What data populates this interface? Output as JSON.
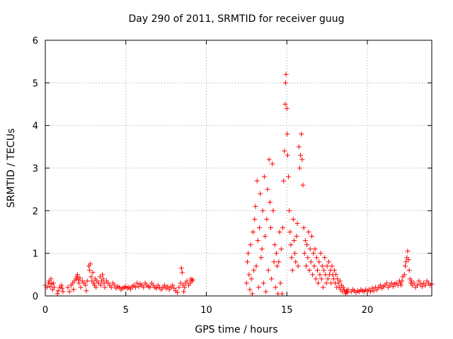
{
  "chart_data": {
    "type": "scatter",
    "title": "Day 290 of 2011, SRMTID for receiver guug",
    "xlabel": "GPS time / hours",
    "ylabel": "SRMTID / TECUs",
    "xlim": [
      0,
      24
    ],
    "ylim": [
      0,
      6
    ],
    "xticks": [
      0,
      5,
      10,
      15,
      20
    ],
    "yticks": [
      0,
      1,
      2,
      3,
      4,
      5,
      6
    ],
    "grid": true,
    "marker": "+",
    "marker_color": "#ff0000",
    "series": [
      {
        "name": "SRMTID",
        "color": "#ff0000",
        "points": [
          [
            0.0,
            0.25
          ],
          [
            0.1,
            0.2
          ],
          [
            0.2,
            0.3
          ],
          [
            0.25,
            0.35
          ],
          [
            0.3,
            0.22
          ],
          [
            0.35,
            0.4
          ],
          [
            0.4,
            0.28
          ],
          [
            0.45,
            0.15
          ],
          [
            0.5,
            0.3
          ],
          [
            0.55,
            0.2
          ],
          [
            0.75,
            0.05
          ],
          [
            0.8,
            0.12
          ],
          [
            0.9,
            0.2
          ],
          [
            1.0,
            0.25
          ],
          [
            1.05,
            0.18
          ],
          [
            1.1,
            0.1
          ],
          [
            1.4,
            0.2
          ],
          [
            1.5,
            0.1
          ],
          [
            1.6,
            0.25
          ],
          [
            1.7,
            0.3
          ],
          [
            1.75,
            0.15
          ],
          [
            1.8,
            0.35
          ],
          [
            1.9,
            0.4
          ],
          [
            1.95,
            0.45
          ],
          [
            2.0,
            0.5
          ],
          [
            2.05,
            0.38
          ],
          [
            2.1,
            0.3
          ],
          [
            2.15,
            0.42
          ],
          [
            2.2,
            0.2
          ],
          [
            2.3,
            0.35
          ],
          [
            2.4,
            0.3
          ],
          [
            2.5,
            0.25
          ],
          [
            2.55,
            0.12
          ],
          [
            2.6,
            0.35
          ],
          [
            2.7,
            0.7
          ],
          [
            2.75,
            0.6
          ],
          [
            2.8,
            0.75
          ],
          [
            2.85,
            0.45
          ],
          [
            2.9,
            0.35
          ],
          [
            2.95,
            0.55
          ],
          [
            3.0,
            0.3
          ],
          [
            3.05,
            0.25
          ],
          [
            3.1,
            0.4
          ],
          [
            3.15,
            0.2
          ],
          [
            3.2,
            0.35
          ],
          [
            3.3,
            0.3
          ],
          [
            3.4,
            0.45
          ],
          [
            3.45,
            0.25
          ],
          [
            3.5,
            0.35
          ],
          [
            3.55,
            0.5
          ],
          [
            3.6,
            0.4
          ],
          [
            3.65,
            0.3
          ],
          [
            3.7,
            0.2
          ],
          [
            3.8,
            0.35
          ],
          [
            3.9,
            0.3
          ],
          [
            4.0,
            0.25
          ],
          [
            4.1,
            0.2
          ],
          [
            4.2,
            0.3
          ],
          [
            4.3,
            0.25
          ],
          [
            4.4,
            0.18
          ],
          [
            4.5,
            0.22
          ],
          [
            4.6,
            0.2
          ],
          [
            4.7,
            0.15
          ],
          [
            4.8,
            0.18
          ],
          [
            4.9,
            0.2
          ],
          [
            5.0,
            0.22
          ],
          [
            5.1,
            0.18
          ],
          [
            5.2,
            0.2
          ],
          [
            5.3,
            0.16
          ],
          [
            5.4,
            0.22
          ],
          [
            5.5,
            0.25
          ],
          [
            5.6,
            0.2
          ],
          [
            5.7,
            0.3
          ],
          [
            5.8,
            0.22
          ],
          [
            5.9,
            0.28
          ],
          [
            6.0,
            0.25
          ],
          [
            6.1,
            0.2
          ],
          [
            6.2,
            0.3
          ],
          [
            6.3,
            0.25
          ],
          [
            6.4,
            0.22
          ],
          [
            6.5,
            0.2
          ],
          [
            6.6,
            0.3
          ],
          [
            6.7,
            0.25
          ],
          [
            6.8,
            0.2
          ],
          [
            6.9,
            0.18
          ],
          [
            7.0,
            0.25
          ],
          [
            7.1,
            0.2
          ],
          [
            7.2,
            0.15
          ],
          [
            7.3,
            0.2
          ],
          [
            7.4,
            0.25
          ],
          [
            7.5,
            0.18
          ],
          [
            7.6,
            0.22
          ],
          [
            7.7,
            0.15
          ],
          [
            7.8,
            0.2
          ],
          [
            7.9,
            0.25
          ],
          [
            8.0,
            0.18
          ],
          [
            8.1,
            0.12
          ],
          [
            8.2,
            0.08
          ],
          [
            8.3,
            0.2
          ],
          [
            8.4,
            0.3
          ],
          [
            8.45,
            0.65
          ],
          [
            8.5,
            0.55
          ],
          [
            8.55,
            0.25
          ],
          [
            8.6,
            0.1
          ],
          [
            8.65,
            0.2
          ],
          [
            8.7,
            0.3
          ],
          [
            8.8,
            0.35
          ],
          [
            8.9,
            0.25
          ],
          [
            9.0,
            0.3
          ],
          [
            9.05,
            0.4
          ],
          [
            9.1,
            0.35
          ],
          [
            9.15,
            0.38
          ],
          [
            12.5,
            0.3
          ],
          [
            12.55,
            0.8
          ],
          [
            12.6,
            1.0
          ],
          [
            12.65,
            0.5
          ],
          [
            12.7,
            0.15
          ],
          [
            12.75,
            1.2
          ],
          [
            12.8,
            0.4
          ],
          [
            12.85,
            0.05
          ],
          [
            12.9,
            1.5
          ],
          [
            12.95,
            0.6
          ],
          [
            13.0,
            1.8
          ],
          [
            13.05,
            2.1
          ],
          [
            13.1,
            0.7
          ],
          [
            13.15,
            2.7
          ],
          [
            13.2,
            1.3
          ],
          [
            13.25,
            0.2
          ],
          [
            13.3,
            1.6
          ],
          [
            13.35,
            2.4
          ],
          [
            13.4,
            0.9
          ],
          [
            13.45,
            1.1
          ],
          [
            13.5,
            2.0
          ],
          [
            13.55,
            0.3
          ],
          [
            13.6,
            2.8
          ],
          [
            13.65,
            1.4
          ],
          [
            13.7,
            0.1
          ],
          [
            13.75,
            1.8
          ],
          [
            13.8,
            2.5
          ],
          [
            13.85,
            0.6
          ],
          [
            13.9,
            3.2
          ],
          [
            13.95,
            2.2
          ],
          [
            14.0,
            1.6
          ],
          [
            14.05,
            0.4
          ],
          [
            14.1,
            3.1
          ],
          [
            14.15,
            2.0
          ],
          [
            14.2,
            0.8
          ],
          [
            14.25,
            1.2
          ],
          [
            14.3,
            0.2
          ],
          [
            14.35,
            1.0
          ],
          [
            14.4,
            0.7
          ],
          [
            14.45,
            0.05
          ],
          [
            14.5,
            0.8
          ],
          [
            14.55,
            1.5
          ],
          [
            14.6,
            0.3
          ],
          [
            14.65,
            1.1
          ],
          [
            14.7,
            0.05
          ],
          [
            14.75,
            1.6
          ],
          [
            14.8,
            2.7
          ],
          [
            14.85,
            3.4
          ],
          [
            14.9,
            4.5
          ],
          [
            14.92,
            5.0
          ],
          [
            14.95,
            5.2
          ],
          [
            15.0,
            4.4
          ],
          [
            15.02,
            3.8
          ],
          [
            15.05,
            3.3
          ],
          [
            15.1,
            2.8
          ],
          [
            15.15,
            2.0
          ],
          [
            15.2,
            1.5
          ],
          [
            15.25,
            1.2
          ],
          [
            15.3,
            0.9
          ],
          [
            15.35,
            0.6
          ],
          [
            15.4,
            1.8
          ],
          [
            15.45,
            1.3
          ],
          [
            15.5,
            1.0
          ],
          [
            15.55,
            0.8
          ],
          [
            15.6,
            1.4
          ],
          [
            15.65,
            1.7
          ],
          [
            15.7,
            0.7
          ],
          [
            15.75,
            3.5
          ],
          [
            15.8,
            3.0
          ],
          [
            15.85,
            3.3
          ],
          [
            15.9,
            3.8
          ],
          [
            15.95,
            3.2
          ],
          [
            16.0,
            2.6
          ],
          [
            16.05,
            1.6
          ],
          [
            16.1,
            1.0
          ],
          [
            16.15,
            1.3
          ],
          [
            16.2,
            0.7
          ],
          [
            16.25,
            1.2
          ],
          [
            16.3,
            0.9
          ],
          [
            16.35,
            1.5
          ],
          [
            16.4,
            0.6
          ],
          [
            16.45,
            1.1
          ],
          [
            16.5,
            0.8
          ],
          [
            16.55,
            1.4
          ],
          [
            16.6,
            0.5
          ],
          [
            16.65,
            1.0
          ],
          [
            16.7,
            0.7
          ],
          [
            16.75,
            1.1
          ],
          [
            16.8,
            0.4
          ],
          [
            16.85,
            0.9
          ],
          [
            16.9,
            0.6
          ],
          [
            16.95,
            0.3
          ],
          [
            17.0,
            0.8
          ],
          [
            17.05,
            0.5
          ],
          [
            17.1,
            1.0
          ],
          [
            17.15,
            0.4
          ],
          [
            17.2,
            0.7
          ],
          [
            17.25,
            0.2
          ],
          [
            17.3,
            0.6
          ],
          [
            17.35,
            0.9
          ],
          [
            17.4,
            0.5
          ],
          [
            17.45,
            0.3
          ],
          [
            17.5,
            0.7
          ],
          [
            17.55,
            0.4
          ],
          [
            17.6,
            0.8
          ],
          [
            17.65,
            0.5
          ],
          [
            17.7,
            0.6
          ],
          [
            17.75,
            0.3
          ],
          [
            17.8,
            0.7
          ],
          [
            17.85,
            0.5
          ],
          [
            17.9,
            0.4
          ],
          [
            17.95,
            0.6
          ],
          [
            18.0,
            0.3
          ],
          [
            18.05,
            0.5
          ],
          [
            18.1,
            0.2
          ],
          [
            18.15,
            0.4
          ],
          [
            18.2,
            0.3
          ],
          [
            18.25,
            0.2
          ],
          [
            18.3,
            0.35
          ],
          [
            18.35,
            0.15
          ],
          [
            18.4,
            0.25
          ],
          [
            18.45,
            0.1
          ],
          [
            18.5,
            0.2
          ],
          [
            18.55,
            0.15
          ],
          [
            18.6,
            0.1
          ],
          [
            18.65,
            0.05
          ],
          [
            18.7,
            0.12
          ],
          [
            18.75,
            0.08
          ],
          [
            18.8,
            0.15
          ],
          [
            19.0,
            0.1
          ],
          [
            19.1,
            0.15
          ],
          [
            19.2,
            0.12
          ],
          [
            19.3,
            0.08
          ],
          [
            19.4,
            0.12
          ],
          [
            19.5,
            0.1
          ],
          [
            19.6,
            0.15
          ],
          [
            19.7,
            0.12
          ],
          [
            19.8,
            0.1
          ],
          [
            19.9,
            0.15
          ],
          [
            20.0,
            0.12
          ],
          [
            20.1,
            0.15
          ],
          [
            20.2,
            0.1
          ],
          [
            20.3,
            0.18
          ],
          [
            20.4,
            0.12
          ],
          [
            20.5,
            0.2
          ],
          [
            20.6,
            0.15
          ],
          [
            20.7,
            0.2
          ],
          [
            20.8,
            0.25
          ],
          [
            20.9,
            0.18
          ],
          [
            21.0,
            0.22
          ],
          [
            21.1,
            0.25
          ],
          [
            21.2,
            0.3
          ],
          [
            21.3,
            0.2
          ],
          [
            21.4,
            0.25
          ],
          [
            21.5,
            0.3
          ],
          [
            21.6,
            0.22
          ],
          [
            21.7,
            0.28
          ],
          [
            21.8,
            0.3
          ],
          [
            21.9,
            0.25
          ],
          [
            22.0,
            0.35
          ],
          [
            22.05,
            0.3
          ],
          [
            22.1,
            0.25
          ],
          [
            22.15,
            0.35
          ],
          [
            22.2,
            0.45
          ],
          [
            22.3,
            0.5
          ],
          [
            22.35,
            0.7
          ],
          [
            22.4,
            0.8
          ],
          [
            22.45,
            0.9
          ],
          [
            22.5,
            1.05
          ],
          [
            22.55,
            0.85
          ],
          [
            22.6,
            0.6
          ],
          [
            22.65,
            0.4
          ],
          [
            22.7,
            0.3
          ],
          [
            22.75,
            0.35
          ],
          [
            22.8,
            0.25
          ],
          [
            22.9,
            0.3
          ],
          [
            23.0,
            0.2
          ],
          [
            23.1,
            0.25
          ],
          [
            23.2,
            0.35
          ],
          [
            23.3,
            0.28
          ],
          [
            23.4,
            0.22
          ],
          [
            23.5,
            0.3
          ],
          [
            23.6,
            0.25
          ],
          [
            23.7,
            0.35
          ],
          [
            23.8,
            0.3
          ],
          [
            23.9,
            0.25
          ],
          [
            24.0,
            0.28
          ]
        ]
      }
    ]
  }
}
